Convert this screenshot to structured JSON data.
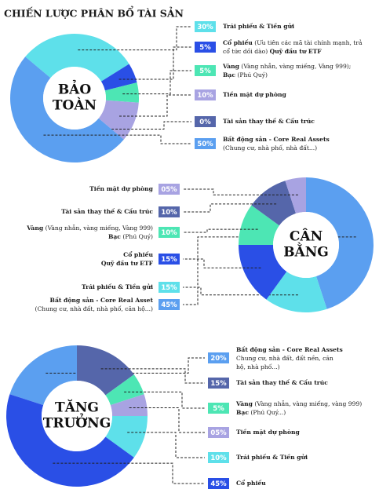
{
  "title": "CHIẾN LƯỢC PHÂN BỔ TÀI SẢN",
  "chart_data": [
    {
      "type": "pie",
      "center_label": [
        "BẢO",
        "TOÀN"
      ],
      "values": [
        30,
        5,
        5,
        10,
        0,
        50
      ],
      "value_labels": [
        "30%",
        "5%",
        "5%",
        "10%",
        "0%",
        "50%"
      ],
      "colors": [
        "#5ee0ea",
        "#2a4fe6",
        "#4de6b4",
        "#a8a3e2",
        "#5566aa",
        "#5b9ff0"
      ],
      "labels": [
        [
          [
            {
              "text": "Trái phiếu & Tiền gửi",
              "bold": true
            }
          ]
        ],
        [
          [
            {
              "text": "Cổ phiếu",
              "bold": true
            },
            {
              "text": " (Ưu tiên các mã tài chính mạnh, trả",
              "bold": false
            }
          ],
          [
            {
              "text": "cổ tức dồi dào) ",
              "bold": false
            },
            {
              "text": "Quỹ đầu tư ETF",
              "bold": true
            }
          ]
        ],
        [
          [
            {
              "text": "Vàng",
              "bold": true
            },
            {
              "text": " (Vàng nhẫn, vàng miếng, Vàng 999);",
              "bold": false
            }
          ],
          [
            {
              "text": "Bạc",
              "bold": true
            },
            {
              "text": " (Phú Quý)",
              "bold": false
            }
          ]
        ],
        [
          [
            {
              "text": "Tiền mặt dự phòng",
              "bold": true
            }
          ]
        ],
        [
          [
            {
              "text": "Tài sản thay thế & Cấu trúc",
              "bold": true
            }
          ]
        ],
        [
          [
            {
              "text": "Bất động sản - Core Real Assets",
              "bold": true
            }
          ],
          [
            {
              "text": "(Chung cư, nhà phố, nhà đất...)",
              "bold": false
            }
          ]
        ]
      ]
    },
    {
      "type": "pie",
      "center_label": [
        "CÂN",
        "BẰNG"
      ],
      "values": [
        45,
        15,
        15,
        10,
        10,
        5
      ],
      "value_labels": [
        "45%",
        "15%",
        "15%",
        "10%",
        "10%",
        "05%"
      ],
      "colors": [
        "#5b9ff0",
        "#5ee0ea",
        "#2a4fe6",
        "#4de6b4",
        "#5566aa",
        "#a8a3e2"
      ],
      "labels": [
        [
          [
            {
              "text": "Bất động sản - Core Real Asset",
              "bold": true
            }
          ],
          [
            {
              "text": "(Chung cư, nhà đất, nhà phố, căn hộ...)",
              "bold": false
            }
          ]
        ],
        [
          [
            {
              "text": "Trái phiếu & Tiền gửi",
              "bold": true
            }
          ]
        ],
        [
          [
            {
              "text": "Cổ phiếu",
              "bold": true
            }
          ],
          [
            {
              "text": "Quỹ đầu tư ETF",
              "bold": true
            }
          ]
        ],
        [
          [
            {
              "text": "Vàng",
              "bold": true
            },
            {
              "text": " (Vàng nhẫn, vàng miếng, Vàng 999)",
              "bold": false
            }
          ],
          [
            {
              "text": "Bạc",
              "bold": true
            },
            {
              "text": " (Phú Quý)",
              "bold": false
            }
          ]
        ],
        [
          [
            {
              "text": "Tài sản thay thế & Cấu trúc",
              "bold": true
            }
          ]
        ],
        [
          [
            {
              "text": "Tiền mặt dự phòng",
              "bold": true
            }
          ]
        ]
      ]
    },
    {
      "type": "pie",
      "center_label": [
        "TĂNG",
        "TRƯỞNG"
      ],
      "values": [
        20,
        15,
        5,
        5,
        10,
        45
      ],
      "value_labels": [
        "20%",
        "15%",
        "5%",
        "05%",
        "10%",
        "45%"
      ],
      "colors": [
        "#5b9ff0",
        "#5566aa",
        "#4de6b4",
        "#a8a3e2",
        "#5ee0ea",
        "#2a4fe6"
      ],
      "labels": [
        [
          [
            {
              "text": "Bất động sản - Core Real Assets",
              "bold": true
            }
          ],
          [
            {
              "text": "Chung cư, nhà đất, đất nền, căn",
              "bold": false
            }
          ],
          [
            {
              "text": "hộ, nhà phố...)",
              "bold": false
            }
          ]
        ],
        [
          [
            {
              "text": "Tài sản thay thế & Cấu trúc",
              "bold": true
            }
          ]
        ],
        [
          [
            {
              "text": "Vàng",
              "bold": true
            },
            {
              "text": " (Vàng nhẫn, vàng miếng, vàng 999)",
              "bold": false
            }
          ],
          [
            {
              "text": "Bạc",
              "bold": true
            },
            {
              "text": " (Phú Quý...)",
              "bold": false
            }
          ]
        ],
        [
          [
            {
              "text": "Tiền mặt dự phòng",
              "bold": true
            }
          ]
        ],
        [
          [
            {
              "text": "Trái phiếu & Tiền gửi",
              "bold": true
            }
          ]
        ],
        [
          [
            {
              "text": "Cổ phiếu",
              "bold": true
            }
          ]
        ]
      ]
    }
  ]
}
